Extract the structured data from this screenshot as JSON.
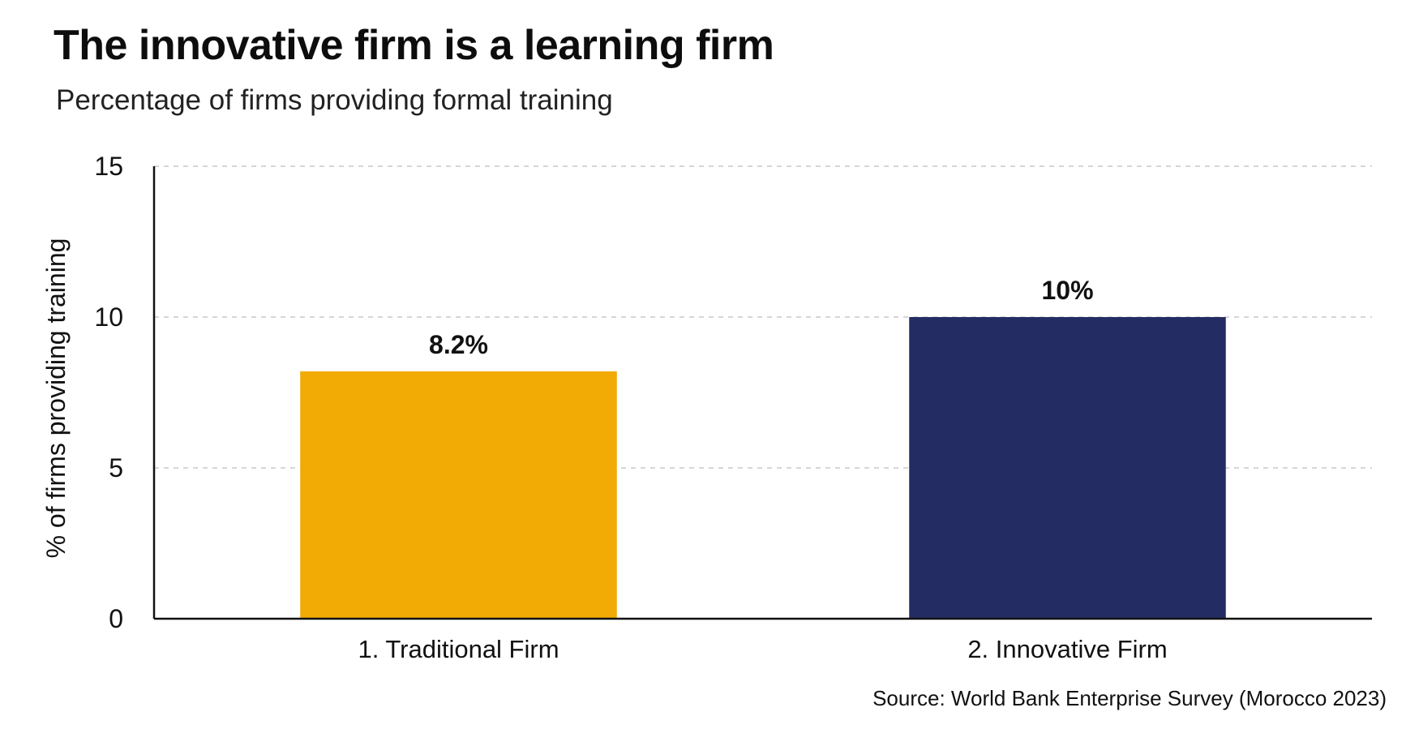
{
  "header": {
    "title": "The innovative firm is a learning firm",
    "subtitle": "Percentage of firms providing formal training"
  },
  "footer": {
    "source": "Source: World Bank Enterprise Survey (Morocco 2023)"
  },
  "chart_data": {
    "type": "bar",
    "title": "The innovative firm is a learning firm",
    "subtitle": "Percentage of firms providing formal training",
    "xlabel": "",
    "ylabel": "% of firms providing training",
    "categories": [
      "1. Traditional Firm",
      "2. Innovative Firm"
    ],
    "values": [
      8.2,
      10
    ],
    "data_labels": [
      "8.2%",
      "10%"
    ],
    "bar_colors": [
      "#F2AA05",
      "#242D63"
    ],
    "ylim": [
      0,
      15
    ],
    "yticks": [
      0,
      5,
      10,
      15
    ],
    "grid": "horizontal-dashed",
    "legend": "none"
  }
}
